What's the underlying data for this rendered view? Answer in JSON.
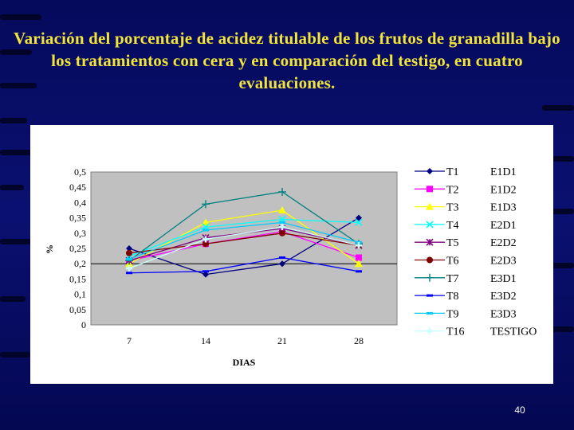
{
  "slide": {
    "title": "Variación del porcentaje de acidez titulable de los frutos de granadilla bajo los tratamientos con cera y en comparación del testigo, en cuatro evaluaciones.",
    "page_number": "40"
  },
  "chart_data": {
    "type": "line",
    "title": "",
    "xlabel": "DIAS",
    "ylabel": "%",
    "categories": [
      "7",
      "14",
      "21",
      "28"
    ],
    "y_ticks": [
      "0",
      "0,05",
      "0,1",
      "0,15",
      "0,2",
      "0,25",
      "0,3",
      "0,35",
      "0,4",
      "0,45",
      "0,5"
    ],
    "ylim": [
      0,
      0.5
    ],
    "grid": false,
    "reference_line": 0.2,
    "legend_position": "right",
    "series": [
      {
        "name": "T1",
        "label": "E1D1",
        "color": "#000080",
        "marker": "diamond",
        "values": [
          0.25,
          0.165,
          0.2,
          0.35
        ]
      },
      {
        "name": "T2",
        "label": "E1D2",
        "color": "#ff00ff",
        "marker": "square",
        "values": [
          0.21,
          0.265,
          0.305,
          0.22
        ]
      },
      {
        "name": "T3",
        "label": "E1D3",
        "color": "#ffff00",
        "marker": "triangle",
        "values": [
          0.2,
          0.335,
          0.375,
          0.2
        ]
      },
      {
        "name": "T4",
        "label": "E2D1",
        "color": "#00ffff",
        "marker": "x",
        "values": [
          0.225,
          0.32,
          0.345,
          0.335
        ]
      },
      {
        "name": "T5",
        "label": "E2D2",
        "color": "#800080",
        "marker": "star",
        "values": [
          0.21,
          0.285,
          0.315,
          0.26
        ]
      },
      {
        "name": "T6",
        "label": "E2D3",
        "color": "#800000",
        "marker": "circle",
        "values": [
          0.235,
          0.265,
          0.3,
          0.26
        ]
      },
      {
        "name": "T7",
        "label": "E3D1",
        "color": "#008080",
        "marker": "plus",
        "values": [
          0.21,
          0.395,
          0.435,
          0.265
        ]
      },
      {
        "name": "T8",
        "label": "E3D2",
        "color": "#0000ff",
        "marker": "dash",
        "values": [
          0.17,
          0.175,
          0.22,
          0.175
        ]
      },
      {
        "name": "T9",
        "label": "E3D3",
        "color": "#00ccff",
        "marker": "dash",
        "values": [
          0.215,
          0.31,
          0.335,
          0.27
        ]
      },
      {
        "name": "T16",
        "label": "TESTIGO",
        "color": "#ccffff",
        "marker": "cross",
        "values": [
          0.185,
          0.28,
          0.32,
          0.26
        ]
      }
    ]
  }
}
